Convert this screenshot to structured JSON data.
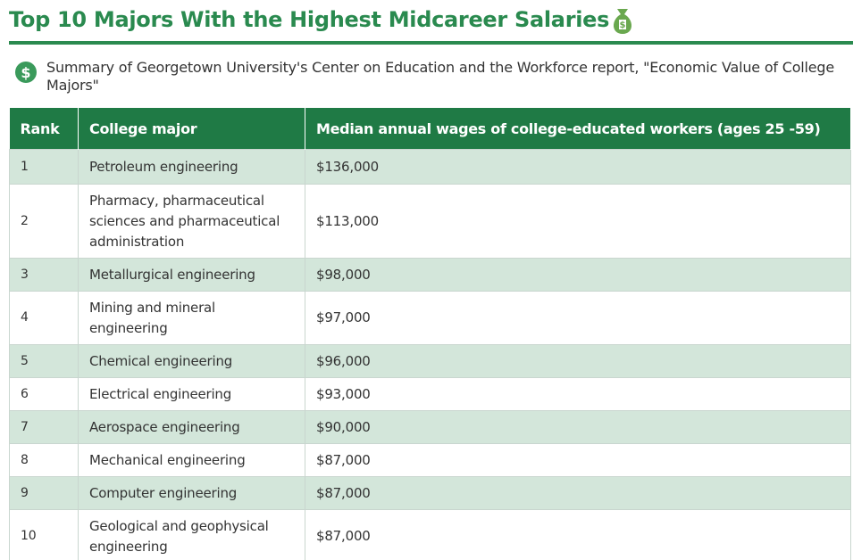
{
  "header": {
    "title": "Top 10 Majors With the Highest Midcareer Salaries",
    "subtitle": "Summary of Georgetown University's Center on Education and the Workforce report, \"Economic Value of College Majors\""
  },
  "table": {
    "columns": [
      "Rank",
      "College major",
      "Median annual wages of college-educated workers (ages 25 -59)"
    ],
    "rows": [
      [
        1,
        "Petroleum engineering",
        "$136,000"
      ],
      [
        2,
        "Pharmacy, pharmaceutical sciences and pharmaceutical administration",
        "$113,000"
      ],
      [
        3,
        "Metallurgical engineering",
        "$98,000"
      ],
      [
        4,
        "Mining and mineral engineering",
        "$97,000"
      ],
      [
        5,
        "Chemical engineering",
        "$96,000"
      ],
      [
        6,
        "Electrical engineering",
        "$93,000"
      ],
      [
        7,
        "Aerospace engineering",
        "$90,000"
      ],
      [
        8,
        "Mechanical engineering",
        "$87,000"
      ],
      [
        9,
        "Computer engineering",
        "$87,000"
      ],
      [
        10,
        "Geological and geophysical engineering",
        "$87,000"
      ]
    ]
  }
}
